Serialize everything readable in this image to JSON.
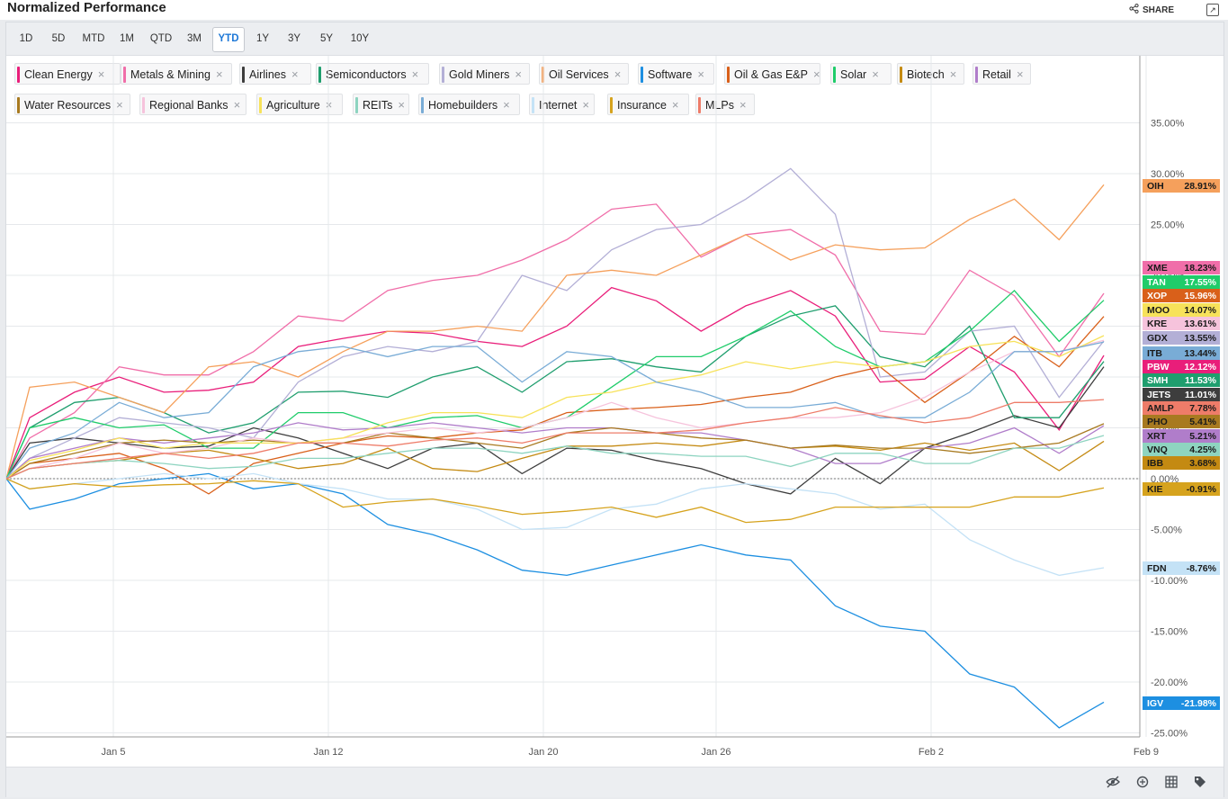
{
  "header": {
    "title": "Normalized Performance",
    "share_label": "SHARE"
  },
  "timeframes": [
    "1D",
    "5D",
    "MTD",
    "1M",
    "QTD",
    "3M",
    "YTD",
    "1Y",
    "3Y",
    "5Y",
    "10Y"
  ],
  "active_timeframe": "YTD",
  "legend_close_glyph": "×",
  "chart_data": {
    "type": "line",
    "title": "Normalized Performance",
    "x_dates": [
      "2021-01-01",
      "2021-01-04",
      "2021-01-05",
      "2021-01-06",
      "2021-01-07",
      "2021-01-08",
      "2021-01-11",
      "2021-01-12",
      "2021-01-13",
      "2021-01-14",
      "2021-01-15",
      "2021-01-19",
      "2021-01-20",
      "2021-01-21",
      "2021-01-22",
      "2021-01-25",
      "2021-01-26",
      "2021-01-27",
      "2021-01-28",
      "2021-01-29",
      "2021-02-01",
      "2021-02-02",
      "2021-02-03",
      "2021-02-04",
      "2021-02-05",
      "2021-02-08"
    ],
    "x_ticks": [
      "Jan 5",
      "Jan 12",
      "Jan 20",
      "Jan 26",
      "Feb 2",
      "Feb 9"
    ],
    "y_ticks": [
      "35.00%",
      "30.00%",
      "25.00%",
      "20.00%",
      "15.00%",
      "10.00%",
      "5.00%",
      "0.00%",
      "-5.00%",
      "-10.00%",
      "-15.00%",
      "-20.00%",
      "-25.00%"
    ],
    "ylim": [
      -26.5,
      38.5
    ],
    "y_unit": "%",
    "grid": true,
    "legend_position": "top-left",
    "series": [
      {
        "name": "Clean Energy",
        "ticker": "PBW",
        "color": "#e91e7a",
        "last": "12.12%",
        "values": [
          0,
          6,
          8.5,
          10,
          8.5,
          8.7,
          9.5,
          13,
          13.8,
          14.5,
          14.3,
          13.5,
          13,
          15,
          18.8,
          17.5,
          14.5,
          17,
          18.5,
          16,
          9.5,
          9.8,
          13,
          10.5,
          4.8,
          12.12
        ]
      },
      {
        "name": "Metals & Mining",
        "ticker": "XME",
        "color": "#f06ea9",
        "last": "18.23%",
        "values": [
          0,
          4,
          6.5,
          11,
          10.2,
          10.2,
          12.5,
          16,
          15.5,
          18.5,
          19.5,
          20,
          21.5,
          23.5,
          26.5,
          27,
          21.8,
          24,
          24.5,
          22,
          14.5,
          14.2,
          20.5,
          18,
          12,
          18.23
        ]
      },
      {
        "name": "Airlines",
        "ticker": "JETS",
        "color": "#3d3d3d",
        "last": "11.01%",
        "values": [
          0,
          3.5,
          4,
          3.5,
          3,
          3.2,
          5,
          4,
          2.5,
          1,
          3,
          3.5,
          0.5,
          3,
          2.8,
          1.8,
          1,
          -0.5,
          -1.5,
          2,
          -0.5,
          3,
          4.5,
          6.2,
          5,
          11.01
        ]
      },
      {
        "name": "Semiconductors",
        "ticker": "SMH",
        "color": "#1f9e6e",
        "last": "11.53%",
        "values": [
          0,
          5,
          7.5,
          8,
          6.5,
          4.5,
          5.5,
          8.5,
          8.6,
          8,
          10,
          11,
          8.5,
          11.5,
          11.8,
          11,
          10.5,
          14,
          16,
          17,
          12,
          11,
          15,
          6,
          6,
          11.53
        ]
      },
      {
        "name": "Gold Miners",
        "ticker": "GDX",
        "color": "#b3afd6",
        "last": "13.55%",
        "values": [
          0,
          2,
          4,
          6,
          5.5,
          5,
          4,
          9.5,
          12,
          13,
          12.5,
          13.5,
          20,
          18.5,
          22.5,
          24.5,
          25,
          27.5,
          30.5,
          26,
          10,
          10.5,
          14.5,
          15,
          8,
          13.55
        ]
      },
      {
        "name": "Oil Services",
        "ticker": "OIH",
        "color": "#f5a05c",
        "last": "28.91%",
        "values": [
          0,
          9,
          9.5,
          8,
          6.5,
          11,
          11.5,
          10,
          12.5,
          14.5,
          14.5,
          15,
          14.5,
          20,
          20.5,
          20,
          22,
          24,
          21.5,
          23,
          22.5,
          22.7,
          25.5,
          27.5,
          23.5,
          28.91
        ]
      },
      {
        "name": "Software",
        "ticker": "IGV",
        "color": "#1d8fe1",
        "last": "-21.98%",
        "values": [
          0,
          -3,
          -2,
          -0.5,
          0,
          0.5,
          -1,
          -0.5,
          -1.5,
          -4.5,
          -5.5,
          -7,
          -9,
          -9.5,
          -8.5,
          -7.5,
          -6.5,
          -7.5,
          -8,
          -12.5,
          -14.5,
          -15,
          -19.2,
          -20.5,
          -24.5,
          -21.98
        ]
      },
      {
        "name": "Oil & Gas E&P",
        "ticker": "XOP",
        "color": "#d9601a",
        "last": "15.96%",
        "values": [
          0,
          1.5,
          2,
          2.5,
          1,
          -1.5,
          1.5,
          2.5,
          3.5,
          4.2,
          4,
          4.5,
          4.8,
          6.5,
          6.8,
          7,
          7.3,
          8,
          8.5,
          10,
          11,
          7.5,
          10.5,
          14,
          11,
          15.96
        ]
      },
      {
        "name": "Solar",
        "ticker": "TAN",
        "color": "#1fcc6a",
        "last": "17.55%",
        "values": [
          0,
          5,
          6,
          5,
          5.3,
          3,
          3,
          6.5,
          6.5,
          5,
          6,
          6.2,
          5,
          6,
          9,
          12,
          12,
          14,
          16.5,
          13,
          11,
          11.5,
          14.5,
          18.5,
          13.5,
          17.55
        ]
      },
      {
        "name": "Biotech",
        "ticker": "IBB",
        "color": "#c48a12",
        "last": "3.68%",
        "values": [
          0,
          1,
          1.5,
          1.8,
          2.5,
          2.8,
          2,
          1,
          1.5,
          3,
          1,
          0.7,
          2,
          3.2,
          3.2,
          3.5,
          3.2,
          3.8,
          3,
          3.2,
          2.8,
          3.5,
          2.8,
          3.5,
          0.8,
          3.68
        ]
      },
      {
        "name": "Retail",
        "ticker": "XRT",
        "color": "#b07dca",
        "last": "5.21%",
        "values": [
          0,
          2,
          3,
          4,
          3.5,
          4,
          4.5,
          5.5,
          4.8,
          5,
          5.5,
          5,
          4.5,
          5,
          5,
          4.5,
          4.5,
          3.8,
          3,
          1.5,
          1.5,
          3,
          3.5,
          5,
          2.5,
          5.21
        ]
      },
      {
        "name": "Water Resources",
        "ticker": "PHO",
        "color": "#a87a20",
        "last": "5.41%",
        "values": [
          0,
          1.5,
          2.5,
          3.5,
          3.8,
          3.5,
          3.8,
          3.5,
          3.5,
          4.5,
          4,
          3.5,
          3,
          4.5,
          5,
          4.5,
          4,
          3.8,
          3,
          3.3,
          3,
          3,
          2.5,
          3,
          3.5,
          5.41
        ]
      },
      {
        "name": "Regional Banks",
        "ticker": "KRE",
        "color": "#f6c3dc",
        "last": "13.61%",
        "values": [
          0,
          1,
          2,
          3.5,
          2.5,
          3,
          4,
          3.5,
          4,
          4.5,
          5,
          4.5,
          5,
          6,
          7.5,
          6,
          5,
          5.5,
          6,
          6,
          6.5,
          8,
          10.5,
          12.5,
          12.5,
          13.61
        ]
      },
      {
        "name": "Agriculture",
        "ticker": "MOO",
        "color": "#f7e25a",
        "last": "14.07%",
        "values": [
          0,
          1.8,
          2.8,
          4,
          3,
          3.5,
          3.5,
          3.5,
          4,
          5.5,
          6.5,
          6.5,
          6,
          8,
          8.5,
          9.5,
          10.2,
          11.5,
          10.8,
          11.5,
          11,
          11.5,
          13,
          13.5,
          12,
          14.07
        ]
      },
      {
        "name": "REITs",
        "ticker": "VNQ",
        "color": "#8ed4c0",
        "last": "4.25%",
        "values": [
          0,
          1,
          1.5,
          1.8,
          1.5,
          1,
          1.2,
          2,
          2,
          2.5,
          3,
          3,
          2.5,
          3.2,
          2.5,
          2.5,
          2.2,
          2.2,
          1.2,
          2.5,
          2.5,
          1.5,
          1.5,
          3,
          3,
          4.25
        ]
      },
      {
        "name": "Homebuilders",
        "ticker": "ITB",
        "color": "#79acd6",
        "last": "13.44%",
        "values": [
          0,
          3,
          4.5,
          7.5,
          6,
          6.5,
          11,
          12.5,
          13,
          12,
          13,
          13,
          9.5,
          12.5,
          12,
          9.5,
          8.5,
          7,
          7,
          7.5,
          6,
          6,
          8.5,
          12.5,
          12.5,
          13.44
        ]
      },
      {
        "name": "Internet",
        "ticker": "FDN",
        "color": "#c4e2f6",
        "last": "-8.76%",
        "values": [
          0,
          -1,
          -0.5,
          0,
          0.5,
          0,
          0.5,
          -0.5,
          -1,
          -2,
          -2,
          -3,
          -5,
          -4.8,
          -3,
          -2.5,
          -1,
          -0.5,
          -1,
          -1.5,
          -3,
          -2.5,
          -6,
          -8,
          -9.5,
          -8.76
        ]
      },
      {
        "name": "Insurance",
        "ticker": "KIE",
        "color": "#d6a31e",
        "last": "-0.91%",
        "values": [
          0,
          -1,
          -0.5,
          -0.8,
          -0.6,
          -0.5,
          -0.2,
          -0.5,
          -2.8,
          -2.3,
          -2,
          -2.7,
          -3.5,
          -3.2,
          -2.8,
          -3.8,
          -2.8,
          -4.3,
          -4,
          -2.8,
          -2.8,
          -2.8,
          -2.8,
          -1.8,
          -1.8,
          -0.91
        ]
      },
      {
        "name": "MLPs",
        "ticker": "AMLP",
        "color": "#ee7c69",
        "last": "7.78%",
        "values": [
          0,
          1,
          1.5,
          2,
          2.5,
          2,
          2.5,
          3.5,
          3.5,
          3.2,
          3.8,
          4,
          3.5,
          4.5,
          4.5,
          4.5,
          4.8,
          5.5,
          6,
          7,
          6.2,
          5.5,
          6,
          7.5,
          7.5,
          7.78
        ]
      }
    ]
  }
}
